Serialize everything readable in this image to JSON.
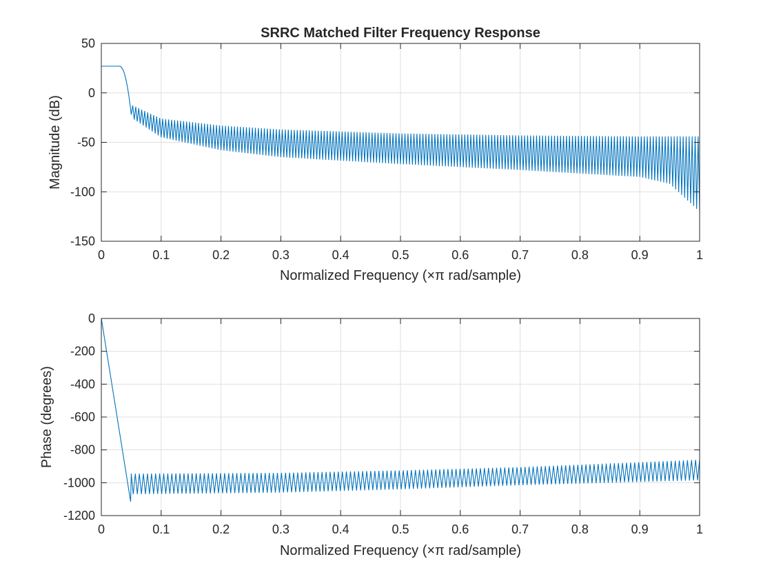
{
  "chart_data": [
    {
      "type": "line",
      "title": "SRRC Matched Filter Frequency Response",
      "xlabel": "Normalized Frequency  (×π rad/sample)",
      "ylabel": "Magnitude (dB)",
      "xlim": [
        0,
        1
      ],
      "ylim": [
        -150,
        50
      ],
      "xticks": [
        0,
        0.1,
        0.2,
        0.3,
        0.4,
        0.5,
        0.6,
        0.7,
        0.8,
        0.9,
        1
      ],
      "xtick_labels": [
        "0",
        "0.1",
        "0.2",
        "0.3",
        "0.4",
        "0.5",
        "0.6",
        "0.7",
        "0.8",
        "0.9",
        "1"
      ],
      "yticks": [
        -150,
        -100,
        -50,
        0,
        50
      ],
      "ytick_labels": [
        "-150",
        "-100",
        "-50",
        "0",
        "50"
      ],
      "grid": true,
      "color": "#0072BD",
      "series": [
        {
          "name": "magnitude",
          "passband_level_db": 27,
          "transition_x": [
            0.03,
            0.05
          ],
          "sidelobe_start_x": 0.05,
          "ripple_count": 190,
          "peak_envelope": {
            "x": [
              0.05,
              0.1,
              0.2,
              0.3,
              0.5,
              0.7,
              0.9,
              1.0
            ],
            "y": [
              -12,
              -26,
              -33,
              -37,
              -41,
              -43,
              -44,
              -44
            ]
          },
          "null_envelope": {
            "x": [
              0.05,
              0.1,
              0.2,
              0.3,
              0.5,
              0.7,
              0.9,
              0.95,
              1.0
            ],
            "y": [
              -25,
              -45,
              -58,
              -65,
              -72,
              -78,
              -85,
              -92,
              -120
            ]
          }
        }
      ]
    },
    {
      "type": "line",
      "title": "",
      "xlabel": "Normalized Frequency  (×π rad/sample)",
      "ylabel": "Phase (degrees)",
      "xlim": [
        0,
        1
      ],
      "ylim": [
        -1200,
        0
      ],
      "xticks": [
        0,
        0.1,
        0.2,
        0.3,
        0.4,
        0.5,
        0.6,
        0.7,
        0.8,
        0.9,
        1
      ],
      "xtick_labels": [
        "0",
        "0.1",
        "0.2",
        "0.3",
        "0.4",
        "0.5",
        "0.6",
        "0.7",
        "0.8",
        "0.9",
        "1"
      ],
      "yticks": [
        -1200,
        -1000,
        -800,
        -600,
        -400,
        -200,
        0
      ],
      "ytick_labels": [
        "-1200",
        "-1000",
        "-800",
        "-600",
        "-400",
        "-200",
        "0"
      ],
      "grid": true,
      "color": "#0072BD",
      "series": [
        {
          "name": "phase",
          "linear_start": [
            0,
            0
          ],
          "linear_end": [
            0.049,
            -1115
          ],
          "zigzag_start_x": 0.05,
          "zigzag_count": 140,
          "upper_envelope": {
            "x": [
              0.05,
              0.3,
              0.5,
              0.7,
              1.0
            ],
            "y": [
              -945,
              -940,
              -925,
              -905,
              -860
            ]
          },
          "lower_envelope": {
            "x": [
              0.05,
              0.3,
              0.5,
              0.7,
              1.0
            ],
            "y": [
              -1070,
              -1060,
              -1040,
              -1015,
              -985
            ]
          }
        }
      ]
    }
  ]
}
